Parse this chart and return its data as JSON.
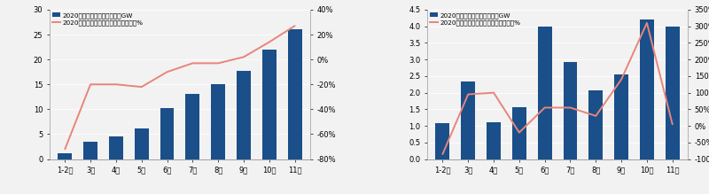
{
  "chart1": {
    "categories": [
      "1-2月",
      "3月",
      "4月",
      "5月",
      "6月",
      "7月",
      "8月",
      "9月",
      "10月",
      "11月"
    ],
    "bar_values": [
      1.1,
      3.5,
      4.5,
      6.1,
      10.2,
      13.1,
      15.1,
      17.8,
      22.0,
      26.0
    ],
    "line_values": [
      -0.72,
      -0.2,
      -0.2,
      -0.22,
      -0.1,
      -0.03,
      -0.03,
      0.02,
      0.14,
      0.27
    ],
    "bar_color": "#1a4f8a",
    "line_color": "#e8857a",
    "ylim_left": [
      0,
      30
    ],
    "ylim_right": [
      -0.8,
      0.4
    ],
    "yticks_left": [
      0,
      5,
      10,
      15,
      20,
      25,
      30
    ],
    "yticks_right": [
      -0.8,
      -0.6,
      -0.4,
      -0.2,
      0.0,
      0.2,
      0.4
    ],
    "yticklabels_right": [
      "-80%",
      "-60%",
      "-40%",
      "-20%",
      "0%",
      "20%",
      "40%"
    ],
    "legend1": "2020年光伏新增累计装机量，GW",
    "legend2": "2020年光伏新增累计装机量同比增速，%"
  },
  "chart2": {
    "categories": [
      "1-2月",
      "3月",
      "4月",
      "5月",
      "6月",
      "7月",
      "8月",
      "9月",
      "10月",
      "11月"
    ],
    "bar_values": [
      1.07,
      2.35,
      1.12,
      1.57,
      4.0,
      2.93,
      2.07,
      2.55,
      4.2,
      4.0
    ],
    "line_values": [
      -0.85,
      0.95,
      1.0,
      -0.2,
      0.55,
      0.55,
      0.3,
      1.4,
      3.1,
      0.05
    ],
    "bar_color": "#1a4f8a",
    "line_color": "#e8857a",
    "ylim_left": [
      0,
      4.5
    ],
    "ylim_right": [
      -1.0,
      3.5
    ],
    "yticks_left": [
      0,
      0.5,
      1.0,
      1.5,
      2.0,
      2.5,
      3.0,
      3.5,
      4.0,
      4.5
    ],
    "yticks_right": [
      -1.0,
      -0.5,
      0.0,
      0.5,
      1.0,
      1.5,
      2.0,
      2.5,
      3.0,
      3.5
    ],
    "yticklabels_right": [
      "-100%",
      "-50%",
      "0%",
      "50%",
      "100%",
      "150%",
      "200%",
      "250%",
      "300%",
      "350%"
    ],
    "legend1": "2020年光伏每月新增装机量，GW",
    "legend2": "2020年光伏每月新增装机量同比增速，%"
  },
  "bg_color": "#f2f2f2",
  "plot_bg": "#f2f2f2",
  "font_size": 6.0,
  "tick_size": 6.0
}
